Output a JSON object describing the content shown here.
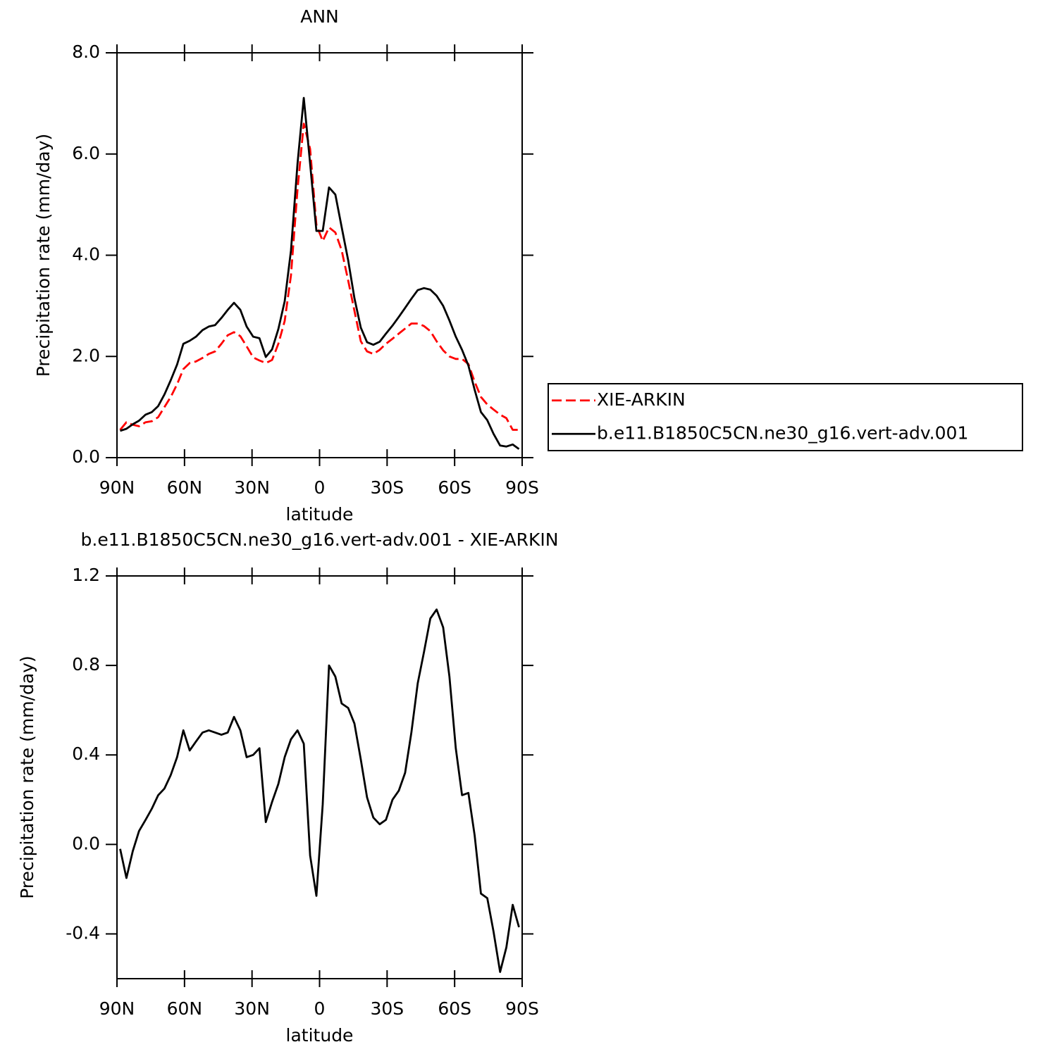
{
  "chart_data": [
    {
      "type": "line",
      "title": "ANN",
      "x_label": "latitude",
      "y_label": "Precipitation rate (mm/day)",
      "x": [
        88.6,
        85.8,
        83.0,
        80.2,
        77.3,
        74.5,
        71.7,
        68.9,
        66.1,
        63.3,
        60.5,
        57.7,
        54.9,
        52.0,
        49.2,
        46.4,
        43.6,
        40.8,
        38.0,
        35.2,
        32.4,
        29.5,
        26.7,
        23.9,
        21.1,
        18.3,
        15.5,
        12.7,
        9.8,
        7.0,
        4.2,
        1.4,
        -1.4,
        -4.2,
        -7.0,
        -9.8,
        -12.7,
        -15.5,
        -18.3,
        -21.1,
        -23.9,
        -26.7,
        -29.5,
        -32.4,
        -35.2,
        -38.0,
        -40.8,
        -43.6,
        -46.4,
        -49.2,
        -52.0,
        -54.9,
        -57.7,
        -60.5,
        -63.3,
        -66.1,
        -68.9,
        -71.7,
        -74.5,
        -77.3,
        -80.2,
        -83.0,
        -85.8,
        -88.6
      ],
      "xlim": [
        90,
        -90
      ],
      "xticks": [
        {
          "value": 90,
          "label": "90N"
        },
        {
          "value": 60,
          "label": "60N"
        },
        {
          "value": 30,
          "label": "30N"
        },
        0,
        {
          "value": -30,
          "label": "30S"
        },
        {
          "value": -60,
          "label": "60S"
        },
        {
          "value": -90,
          "label": "90S"
        }
      ],
      "ylim": [
        0,
        8
      ],
      "yticks": [
        {
          "value": 0,
          "label": "0.0"
        },
        {
          "value": 2,
          "label": "2.0"
        },
        {
          "value": 4,
          "label": "4.0"
        },
        {
          "value": 6,
          "label": "6.0"
        },
        {
          "value": 8,
          "label": "8.0"
        }
      ],
      "legend": "right",
      "series": [
        {
          "name": "XIE-ARKIN",
          "color": "#ff0000",
          "dash": "dashed",
          "values": [
            0.55,
            0.7,
            0.65,
            0.62,
            0.7,
            0.72,
            0.8,
            1.0,
            1.2,
            1.45,
            1.75,
            1.87,
            1.9,
            1.97,
            2.05,
            2.1,
            2.25,
            2.42,
            2.48,
            2.4,
            2.2,
            1.98,
            1.92,
            1.87,
            1.93,
            2.25,
            2.7,
            3.6,
            5.3,
            6.6,
            6.1,
            4.6,
            4.28,
            4.55,
            4.45,
            4.1,
            3.5,
            2.9,
            2.3,
            2.1,
            2.05,
            2.13,
            2.25,
            2.35,
            2.45,
            2.55,
            2.65,
            2.65,
            2.6,
            2.5,
            2.3,
            2.12,
            2.0,
            1.95,
            1.95,
            1.85,
            1.5,
            1.2,
            1.05,
            0.95,
            0.85,
            0.78,
            0.55,
            0.55
          ]
        },
        {
          "name": "b.e11.B1850C5CN.ne30_g16.vert-adv.001",
          "color": "#000000",
          "dash": "solid",
          "values": [
            0.53,
            0.57,
            0.66,
            0.73,
            0.85,
            0.9,
            1.02,
            1.25,
            1.53,
            1.84,
            2.25,
            2.31,
            2.39,
            2.52,
            2.59,
            2.62,
            2.76,
            2.92,
            3.06,
            2.92,
            2.59,
            2.39,
            2.36,
            1.99,
            2.14,
            2.54,
            3.09,
            4.09,
            5.81,
            7.11,
            5.81,
            4.48,
            4.48,
            5.34,
            5.2,
            4.56,
            3.9,
            3.15,
            2.57,
            2.28,
            2.23,
            2.29,
            2.45,
            2.61,
            2.78,
            2.96,
            3.14,
            3.31,
            3.35,
            3.32,
            3.2,
            3.0,
            2.71,
            2.39,
            2.13,
            1.82,
            1.34,
            0.9,
            0.74,
            0.47,
            0.24,
            0.22,
            0.26,
            0.17
          ]
        }
      ]
    },
    {
      "type": "line",
      "title": "b.e11.B1850C5CN.ne30_g16.vert-adv.001 - XIE-ARKIN",
      "x_label": "latitude",
      "y_label": "Precipitation rate (mm/day)",
      "x": [
        88.6,
        85.8,
        83.0,
        80.2,
        77.3,
        74.5,
        71.7,
        68.9,
        66.1,
        63.3,
        60.5,
        57.7,
        54.9,
        52.0,
        49.2,
        46.4,
        43.6,
        40.8,
        38.0,
        35.2,
        32.4,
        29.5,
        26.7,
        23.9,
        21.1,
        18.3,
        15.5,
        12.7,
        9.8,
        7.0,
        4.2,
        1.4,
        -1.4,
        -4.2,
        -7.0,
        -9.8,
        -12.7,
        -15.5,
        -18.3,
        -21.1,
        -23.9,
        -26.7,
        -29.5,
        -32.4,
        -35.2,
        -38.0,
        -40.8,
        -43.6,
        -46.4,
        -49.2,
        -52.0,
        -54.9,
        -57.7,
        -60.5,
        -63.3,
        -66.1,
        -68.9,
        -71.7,
        -74.5,
        -77.3,
        -80.2,
        -83.0,
        -85.8,
        -88.6
      ],
      "xlim": [
        90,
        -90
      ],
      "xticks": [
        {
          "value": 90,
          "label": "90N"
        },
        {
          "value": 60,
          "label": "60N"
        },
        {
          "value": 30,
          "label": "30N"
        },
        0,
        {
          "value": -30,
          "label": "30S"
        },
        {
          "value": -60,
          "label": "60S"
        },
        {
          "value": -90,
          "label": "90S"
        }
      ],
      "ylim": [
        -0.6,
        1.2
      ],
      "yticks": [
        -0.4,
        {
          "value": 0,
          "label": "0.0"
        },
        0.4,
        0.8,
        1.2
      ],
      "series": [
        {
          "color": "#000000",
          "dash": "solid",
          "values": [
            -0.02,
            -0.15,
            -0.03,
            0.06,
            0.11,
            0.16,
            0.22,
            0.25,
            0.31,
            0.39,
            0.51,
            0.42,
            0.46,
            0.5,
            0.51,
            0.5,
            0.49,
            0.5,
            0.57,
            0.51,
            0.39,
            0.4,
            0.43,
            0.1,
            0.19,
            0.27,
            0.39,
            0.47,
            0.51,
            0.45,
            -0.05,
            -0.23,
            0.18,
            0.8,
            0.75,
            0.63,
            0.61,
            0.54,
            0.38,
            0.21,
            0.12,
            0.09,
            0.11,
            0.2,
            0.24,
            0.32,
            0.5,
            0.72,
            0.86,
            1.01,
            1.05,
            0.97,
            0.75,
            0.43,
            0.22,
            0.23,
            0.04,
            -0.22,
            -0.24,
            -0.39,
            -0.57,
            -0.46,
            -0.27,
            -0.37
          ]
        }
      ]
    }
  ]
}
